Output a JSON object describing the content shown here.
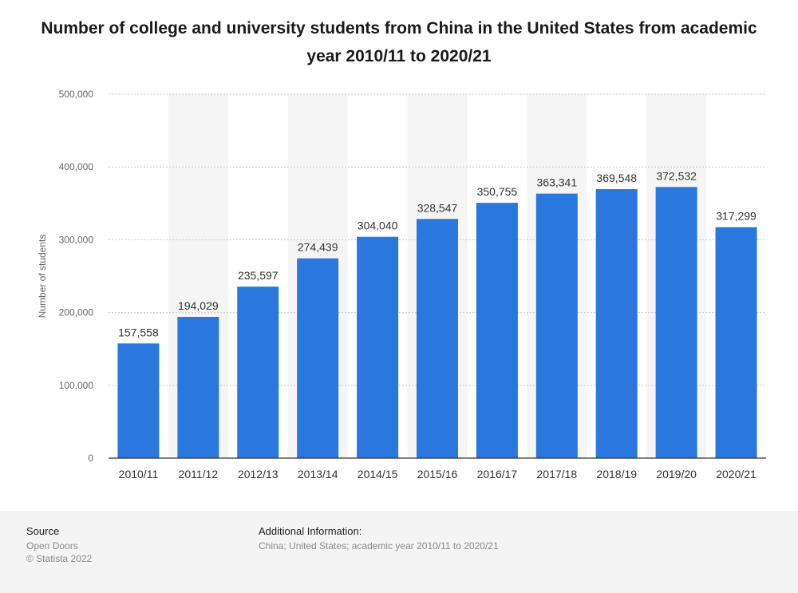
{
  "title": "Number of college and university students from China in the United States from academic year 2010/11 to 2020/21",
  "footer": {
    "source_label": "Source",
    "source_lines": [
      "Open Doors",
      "© Statista 2022"
    ],
    "additional_label": "Additional Information:",
    "additional_text": "China; United States; academic year 2010/11 to 2020/21"
  },
  "colors": {
    "bar": "#2a77dd",
    "band": "#f5f5f5",
    "grid": "#c8c8c8"
  },
  "chart_data": {
    "type": "bar",
    "categories": [
      "2010/11",
      "2011/12",
      "2012/13",
      "2013/14",
      "2014/15",
      "2015/16",
      "2016/17",
      "2017/18",
      "2018/19",
      "2019/20",
      "2020/21"
    ],
    "values": [
      157558,
      194029,
      235597,
      274439,
      304040,
      328547,
      350755,
      363341,
      369548,
      372532,
      317299
    ],
    "value_labels": [
      "157,558",
      "194,029",
      "235,597",
      "274,439",
      "304,040",
      "328,547",
      "350,755",
      "363,341",
      "369,548",
      "372,532",
      "317,299"
    ],
    "ylabel": "Number of students",
    "xlabel": "",
    "ylim": [
      0,
      500000
    ],
    "yticks": [
      0,
      100000,
      200000,
      300000,
      400000,
      500000
    ],
    "ytick_labels": [
      "0",
      "100,000",
      "200,000",
      "300,000",
      "400,000",
      "500,000"
    ],
    "grid": true
  }
}
